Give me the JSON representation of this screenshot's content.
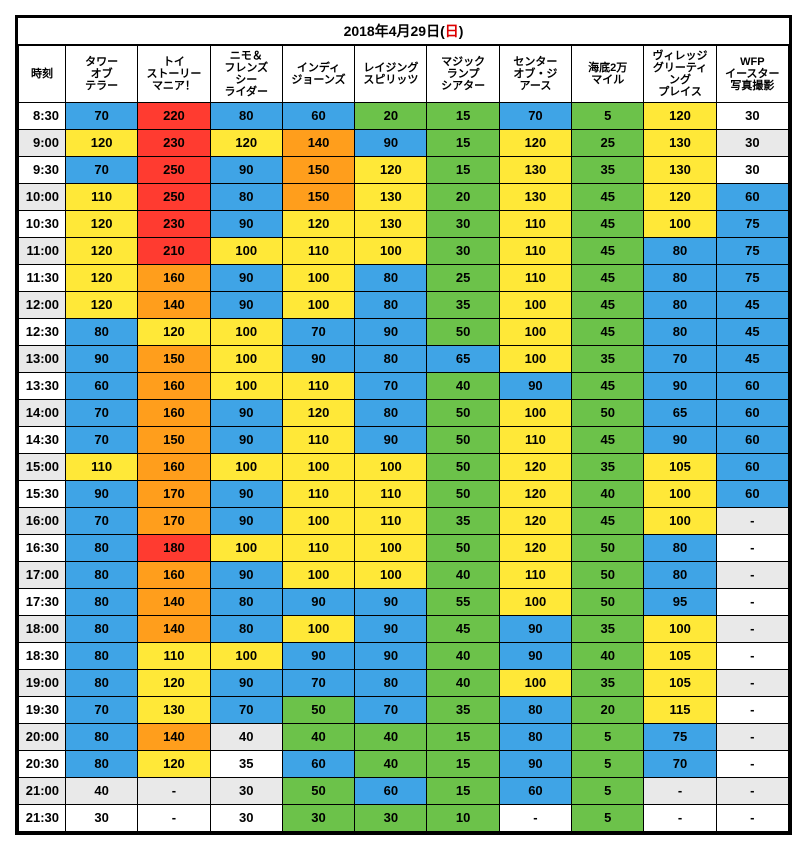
{
  "title_prefix": "2018年4月29日(",
  "title_day": "日",
  "title_suffix": ")",
  "colors": {
    "default": "#ffffff",
    "alt": "#e9e9e9",
    "blue": "#3fa4e6",
    "green": "#6cc24a",
    "yellow": "#ffe838",
    "orange": "#ff9e1c",
    "red": "#ff3b30"
  },
  "thresholds": [
    {
      "min": 180,
      "color": "red"
    },
    {
      "min": 140,
      "color": "orange"
    },
    {
      "min": 100,
      "color": "yellow"
    },
    {
      "min": 60,
      "color": "blue"
    }
  ],
  "headers": [
    "時刻",
    "タワー\nオブ\nテラー",
    "トイ\nストーリー\nマニア！",
    "ニモ＆\nフレンズ\nシー\nライダー",
    "インディ\nジョーンズ",
    "レイジング\nスピリッツ",
    "マジック\nランプ\nシアター",
    "センター\nオブ・ジ\nアース",
    "海底2万\nマイル",
    "ヴィレッジ\nグリーティ\nング\nプレイス",
    "WFP\nイースター\n写真撮影"
  ],
  "greenCols": [
    3,
    4,
    5,
    7,
    9
  ],
  "rows": [
    {
      "time": "8:30",
      "cells": [
        "70",
        "220",
        "80",
        "60",
        "20",
        "15",
        "70",
        "5",
        "120",
        "30"
      ]
    },
    {
      "time": "9:00",
      "cells": [
        "120",
        "230",
        "120",
        "140",
        "90",
        "15",
        "120",
        "25",
        "130",
        "30"
      ]
    },
    {
      "time": "9:30",
      "cells": [
        "70",
        "250",
        "90",
        "150",
        "120",
        "15",
        "130",
        "35",
        "130",
        "30"
      ]
    },
    {
      "time": "10:00",
      "cells": [
        "110",
        "250",
        "80",
        "150",
        "130",
        "20",
        "130",
        "45",
        "120",
        "60"
      ]
    },
    {
      "time": "10:30",
      "cells": [
        "120",
        "230",
        "90",
        "120",
        "130",
        "30",
        "110",
        "45",
        "100",
        "75"
      ]
    },
    {
      "time": "11:00",
      "cells": [
        "120",
        "210",
        "100",
        "110",
        "100",
        "30",
        "110",
        "45",
        "80",
        "75"
      ]
    },
    {
      "time": "11:30",
      "cells": [
        "120",
        "160",
        "90",
        "100",
        "80",
        "25",
        "110",
        "45",
        "80",
        "75"
      ]
    },
    {
      "time": "12:00",
      "cells": [
        "120",
        "140",
        "90",
        "100",
        "80",
        "35",
        "100",
        "45",
        "80",
        "45"
      ]
    },
    {
      "time": "12:30",
      "cells": [
        "80",
        "120",
        "100",
        "70",
        "90",
        "50",
        "100",
        "45",
        "80",
        "45"
      ]
    },
    {
      "time": "13:00",
      "cells": [
        "90",
        "150",
        "100",
        "90",
        "80",
        "65",
        "100",
        "35",
        "70",
        "45"
      ]
    },
    {
      "time": "13:30",
      "cells": [
        "60",
        "160",
        "100",
        "110",
        "70",
        "40",
        "90",
        "45",
        "90",
        "60"
      ]
    },
    {
      "time": "14:00",
      "cells": [
        "70",
        "160",
        "90",
        "120",
        "80",
        "50",
        "100",
        "50",
        "65",
        "60"
      ]
    },
    {
      "time": "14:30",
      "cells": [
        "70",
        "150",
        "90",
        "110",
        "90",
        "50",
        "110",
        "45",
        "90",
        "60"
      ]
    },
    {
      "time": "15:00",
      "cells": [
        "110",
        "160",
        "100",
        "100",
        "100",
        "50",
        "120",
        "35",
        "105",
        "60"
      ]
    },
    {
      "time": "15:30",
      "cells": [
        "90",
        "170",
        "90",
        "110",
        "110",
        "50",
        "120",
        "40",
        "100",
        "60"
      ]
    },
    {
      "time": "16:00",
      "cells": [
        "70",
        "170",
        "90",
        "100",
        "110",
        "35",
        "120",
        "45",
        "100",
        "-"
      ]
    },
    {
      "time": "16:30",
      "cells": [
        "80",
        "180",
        "100",
        "110",
        "100",
        "50",
        "120",
        "50",
        "80",
        "-"
      ]
    },
    {
      "time": "17:00",
      "cells": [
        "80",
        "160",
        "90",
        "100",
        "100",
        "40",
        "110",
        "50",
        "80",
        "-"
      ]
    },
    {
      "time": "17:30",
      "cells": [
        "80",
        "140",
        "80",
        "90",
        "90",
        "55",
        "100",
        "50",
        "95",
        "-"
      ]
    },
    {
      "time": "18:00",
      "cells": [
        "80",
        "140",
        "80",
        "100",
        "90",
        "45",
        "90",
        "35",
        "100",
        "-"
      ]
    },
    {
      "time": "18:30",
      "cells": [
        "80",
        "110",
        "100",
        "90",
        "90",
        "40",
        "90",
        "40",
        "105",
        "-"
      ]
    },
    {
      "time": "19:00",
      "cells": [
        "80",
        "120",
        "90",
        "70",
        "80",
        "40",
        "100",
        "35",
        "105",
        "-"
      ]
    },
    {
      "time": "19:30",
      "cells": [
        "70",
        "130",
        "70",
        "50",
        "70",
        "35",
        "80",
        "20",
        "115",
        "-"
      ]
    },
    {
      "time": "20:00",
      "cells": [
        "80",
        "140",
        "40",
        "40",
        "40",
        "15",
        "80",
        "5",
        "75",
        "-"
      ]
    },
    {
      "time": "20:30",
      "cells": [
        "80",
        "120",
        "35",
        "60",
        "40",
        "15",
        "90",
        "5",
        "70",
        "-"
      ]
    },
    {
      "time": "21:00",
      "cells": [
        "40",
        "-",
        "30",
        "50",
        "60",
        "15",
        "60",
        "5",
        "-",
        "-"
      ]
    },
    {
      "time": "21:30",
      "cells": [
        "30",
        "-",
        "30",
        "30",
        "30",
        "10",
        "-",
        "5",
        "-",
        "-"
      ]
    }
  ],
  "specialBlue": {
    "9": [
      0,
      1,
      2
    ],
    "5": [
      9
    ],
    "6": [
      26
    ]
  }
}
